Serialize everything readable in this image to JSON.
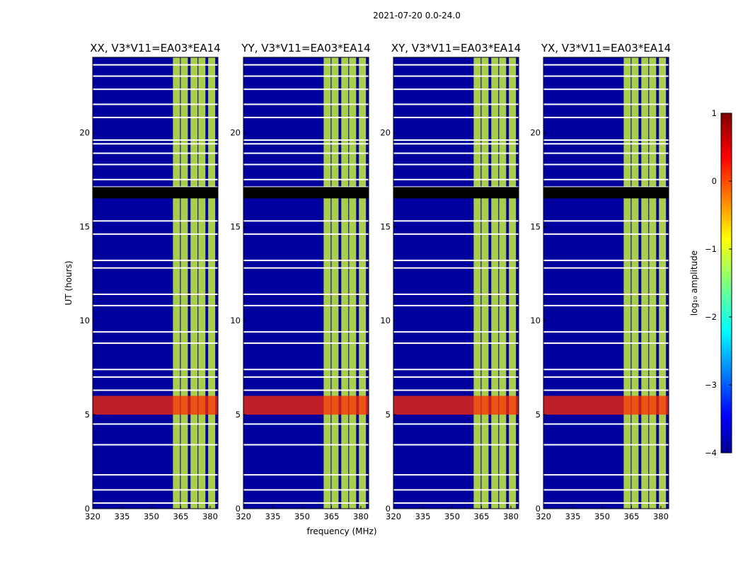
{
  "suptitle": "2021-07-20 0.0-24.0",
  "chart_data": [
    {
      "type": "heatmap",
      "title": "XX, V3*V11=EA03*EA14",
      "xlabel": "",
      "ylabel": "UT (hours)",
      "xlim": [
        320,
        384
      ],
      "ylim": [
        0,
        24
      ],
      "xticks": [
        "320",
        "335",
        "350",
        "365",
        "380"
      ],
      "yticks": [
        "0",
        "5",
        "10",
        "15",
        "20"
      ]
    },
    {
      "type": "heatmap",
      "title": "YY, V3*V11=EA03*EA14",
      "xlabel": "frequency (MHz)",
      "ylabel": "",
      "xlim": [
        320,
        384
      ],
      "ylim": [
        0,
        24
      ],
      "xticks": [
        "320",
        "335",
        "350",
        "365",
        "380"
      ],
      "yticks": [
        "0",
        "5",
        "10",
        "15",
        "20"
      ]
    },
    {
      "type": "heatmap",
      "title": "XY, V3*V11=EA03*EA14",
      "xlabel": "",
      "ylabel": "",
      "xlim": [
        320,
        384
      ],
      "ylim": [
        0,
        24
      ],
      "xticks": [
        "320",
        "335",
        "350",
        "365",
        "380"
      ],
      "yticks": [
        "0",
        "5",
        "10",
        "15",
        "20"
      ]
    },
    {
      "type": "heatmap",
      "title": "YX, V3*V11=EA03*EA14",
      "xlabel": "",
      "ylabel": "",
      "xlim": [
        320,
        384
      ],
      "ylim": [
        0,
        24
      ],
      "xticks": [
        "320",
        "335",
        "350",
        "365",
        "380"
      ],
      "yticks": [
        "0",
        "5",
        "10",
        "15",
        "20"
      ]
    }
  ],
  "colorbar": {
    "label": "log₁₀ amplitude",
    "range": [
      -4,
      1
    ],
    "ticks": [
      "1",
      "0",
      "−1",
      "−2",
      "−3",
      "−4"
    ],
    "colormap": "jet"
  },
  "colors": {
    "background": "#00009f",
    "gap": "#ffffff",
    "rfi_band": "#c8f23c",
    "rfi_hot": "#ff2a00"
  }
}
